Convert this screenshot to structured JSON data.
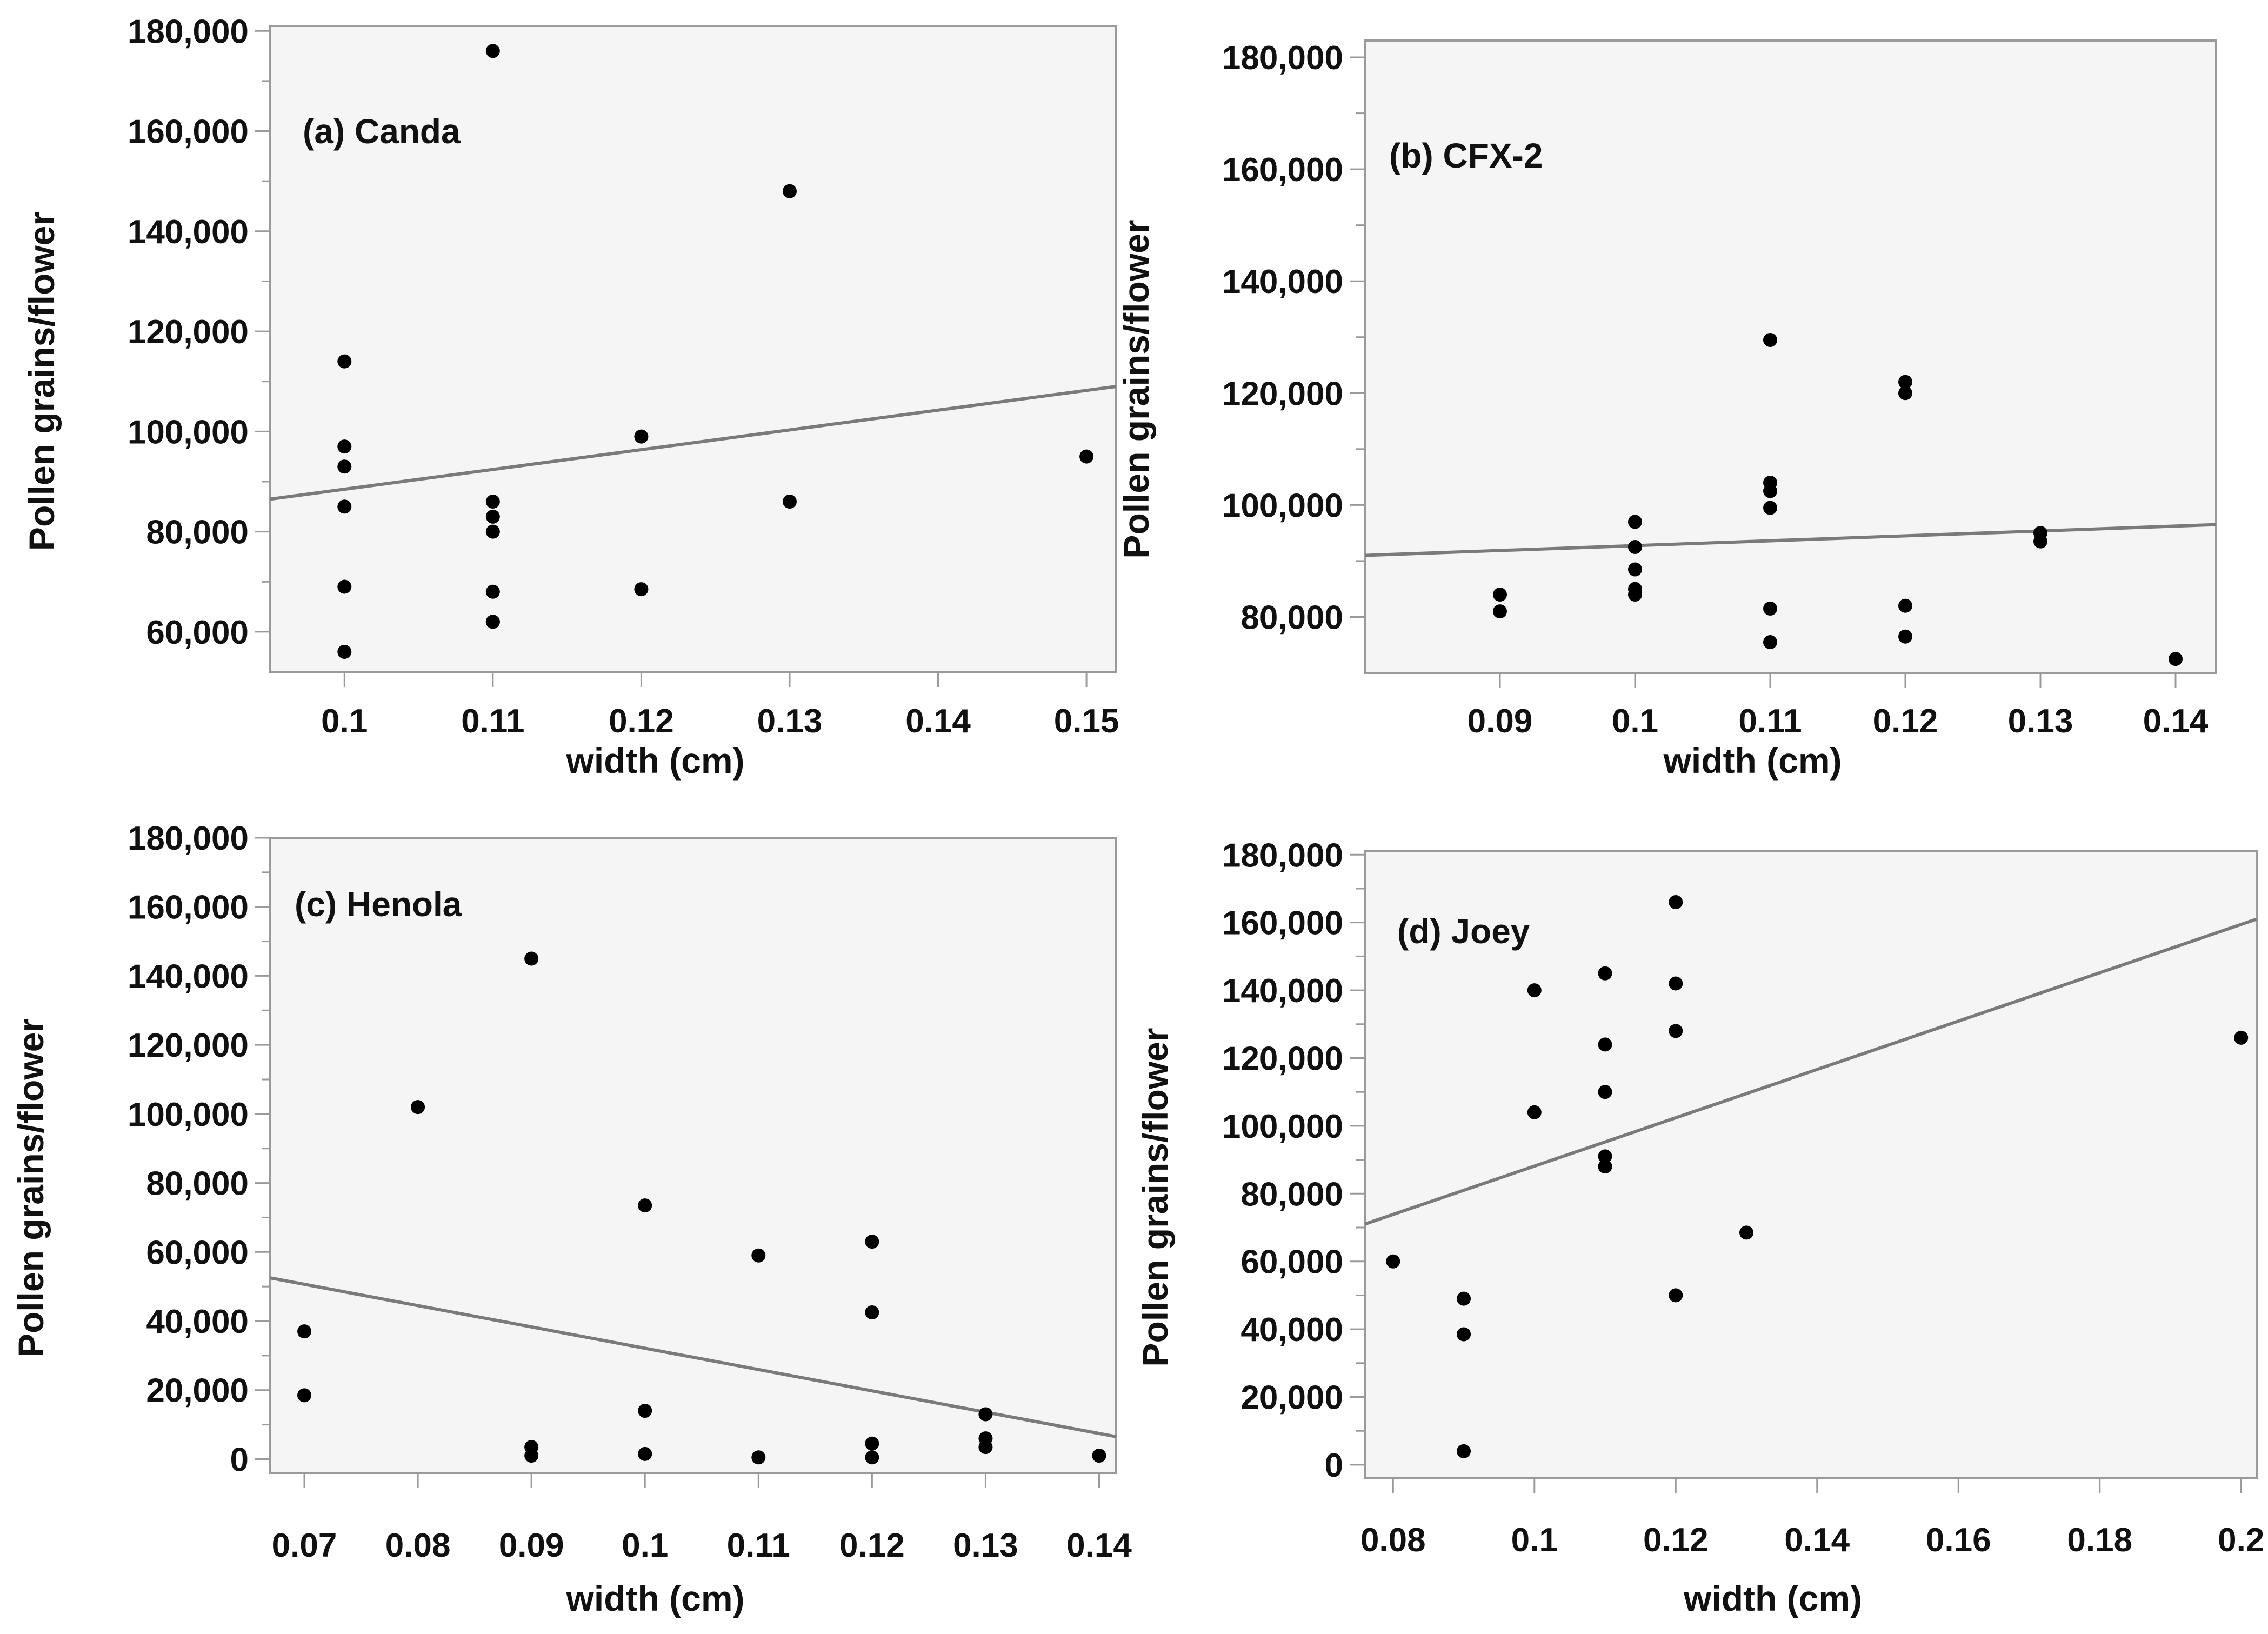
{
  "figure": {
    "background": "#ffffff",
    "panel_fill": "#f5f5f5",
    "frame_color": "#9a9a9a",
    "point_color": "#000000",
    "trend_color": "#7a7a7a"
  },
  "chart_data": [
    {
      "type": "scatter",
      "title": "(a) Canda",
      "xlabel": "width (cm)",
      "ylabel": "Pollen grains/flower",
      "xlim": [
        0.095,
        0.152
      ],
      "ylim": [
        52000,
        181000
      ],
      "xticks": [
        0.1,
        0.11,
        0.12,
        0.13,
        0.14,
        0.15
      ],
      "xtick_labels": [
        "0.1",
        "0.11",
        "0.12",
        "0.13",
        "0.14",
        "0.15"
      ],
      "yticks": [
        60000,
        80000,
        100000,
        120000,
        140000,
        160000,
        180000
      ],
      "ytick_labels": [
        "60,000",
        "80,000",
        "100,000",
        "120,000",
        "140,000",
        "160,000",
        "180,000"
      ],
      "ytick_minor": [
        70000,
        90000,
        110000,
        130000,
        150000,
        170000
      ],
      "x": [
        0.1,
        0.1,
        0.1,
        0.1,
        0.1,
        0.1,
        0.11,
        0.11,
        0.11,
        0.11,
        0.11,
        0.11,
        0.11,
        0.12,
        0.12,
        0.13,
        0.13,
        0.15
      ],
      "y": [
        114000,
        97000,
        93000,
        85000,
        69000,
        56000,
        176000,
        86000,
        83000,
        80000,
        68000,
        62000,
        62000,
        99000,
        68500,
        148000,
        86000,
        95000
      ],
      "trend": {
        "x": [
          0.095,
          0.152
        ],
        "y": [
          86500,
          109000
        ]
      }
    },
    {
      "type": "scatter",
      "title": "(b) CFX-2",
      "xlabel": "width (cm)",
      "ylabel": "Pollen grains/flower",
      "xlim": [
        0.08,
        0.143
      ],
      "ylim": [
        70000,
        183000
      ],
      "xticks": [
        0.09,
        0.1,
        0.11,
        0.12,
        0.13,
        0.14
      ],
      "xtick_labels": [
        "0.09",
        "0.1",
        "0.11",
        "0.12",
        "0.13",
        "0.14"
      ],
      "yticks": [
        80000,
        100000,
        120000,
        140000,
        160000,
        180000
      ],
      "ytick_labels": [
        "80,000",
        "100,000",
        "120,000",
        "140,000",
        "160,000",
        "180,000"
      ],
      "ytick_minor": [
        90000,
        110000,
        130000,
        150000,
        170000
      ],
      "x": [
        0.09,
        0.09,
        0.1,
        0.1,
        0.1,
        0.1,
        0.1,
        0.11,
        0.11,
        0.11,
        0.11,
        0.11,
        0.11,
        0.12,
        0.12,
        0.12,
        0.12,
        0.13,
        0.13,
        0.14
      ],
      "y": [
        84000,
        81000,
        97000,
        92500,
        88500,
        85000,
        84000,
        129500,
        104000,
        102500,
        99500,
        81500,
        75500,
        122000,
        120000,
        82000,
        76500,
        95000,
        93500,
        72500
      ],
      "trend": {
        "x": [
          0.08,
          0.143
        ],
        "y": [
          91000,
          96500
        ]
      }
    },
    {
      "type": "scatter",
      "title": "(c) Henola",
      "xlabel": "width (cm)",
      "ylabel": "Pollen grains/flower",
      "xlim": [
        0.067,
        0.1415
      ],
      "ylim": [
        -4000,
        180000
      ],
      "xticks": [
        0.07,
        0.08,
        0.09,
        0.1,
        0.11,
        0.12,
        0.13,
        0.14
      ],
      "xtick_labels": [
        "0.07",
        "0.08",
        "0.09",
        "0.1",
        "0.11",
        "0.12",
        "0.13",
        "0.14"
      ],
      "yticks": [
        0,
        20000,
        40000,
        60000,
        80000,
        100000,
        120000,
        140000,
        160000,
        180000
      ],
      "ytick_labels": [
        "0",
        "20,000",
        "40,000",
        "60,000",
        "80,000",
        "100,000",
        "120,000",
        "140,000",
        "160,000",
        "180,000"
      ],
      "ytick_minor": [
        10000,
        30000,
        50000,
        70000,
        90000,
        110000,
        130000,
        150000,
        170000
      ],
      "x": [
        0.07,
        0.07,
        0.08,
        0.09,
        0.09,
        0.09,
        0.1,
        0.1,
        0.1,
        0.11,
        0.11,
        0.12,
        0.12,
        0.12,
        0.12,
        0.13,
        0.13,
        0.13,
        0.14
      ],
      "y": [
        37000,
        18500,
        102000,
        145000,
        3500,
        1000,
        73500,
        14000,
        1500,
        59000,
        500,
        63000,
        42500,
        4500,
        500,
        13000,
        6000,
        3500,
        1000
      ],
      "trend": {
        "x": [
          0.067,
          0.1415
        ],
        "y": [
          52500,
          6500
        ]
      }
    },
    {
      "type": "scatter",
      "title": "(d) Joey",
      "xlabel": "width (cm)",
      "ylabel": "Pollen grains/flower",
      "xlim": [
        0.076,
        0.2022
      ],
      "ylim": [
        -4000,
        181000
      ],
      "xticks": [
        0.08,
        0.1,
        0.12,
        0.14,
        0.16,
        0.18,
        0.2
      ],
      "xtick_labels": [
        "0.08",
        "0.1",
        "0.12",
        "0.14",
        "0.16",
        "0.18",
        "0.2"
      ],
      "yticks": [
        0,
        20000,
        40000,
        60000,
        80000,
        100000,
        120000,
        140000,
        160000,
        180000
      ],
      "ytick_labels": [
        "0",
        "20,000",
        "40,000",
        "60,000",
        "80,000",
        "100,000",
        "120,000",
        "140,000",
        "160,000",
        "180,000"
      ],
      "ytick_minor": [
        10000,
        30000,
        50000,
        70000,
        90000,
        110000,
        130000,
        150000,
        170000
      ],
      "x": [
        0.08,
        0.09,
        0.09,
        0.09,
        0.1,
        0.1,
        0.11,
        0.11,
        0.11,
        0.11,
        0.11,
        0.12,
        0.12,
        0.12,
        0.12,
        0.13,
        0.2
      ],
      "y": [
        60000,
        49000,
        38500,
        4000,
        140000,
        104000,
        145000,
        124000,
        110000,
        91000,
        88000,
        166000,
        142000,
        128000,
        50000,
        68500,
        126000
      ],
      "trend": {
        "x": [
          0.076,
          0.2022
        ],
        "y": [
          71000,
          161000
        ]
      }
    }
  ]
}
